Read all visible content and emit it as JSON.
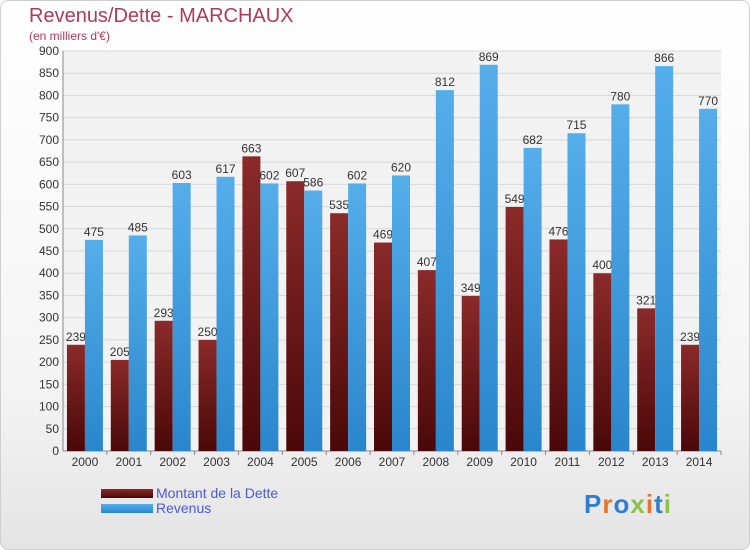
{
  "chart_data": {
    "type": "bar",
    "title": "Revenus/Dette - MARCHAUX",
    "subtitle": "(en milliers d'€)",
    "categories": [
      "2000",
      "2001",
      "2002",
      "2003",
      "2004",
      "2005",
      "2006",
      "2007",
      "2008",
      "2009",
      "2010",
      "2011",
      "2012",
      "2013",
      "2014"
    ],
    "series": [
      {
        "name": "Montant de la Dette",
        "color": "#8b2020",
        "values": [
          239,
          205,
          293,
          250,
          663,
          607,
          535,
          469,
          407,
          349,
          549,
          476,
          400,
          321,
          239
        ]
      },
      {
        "name": "Revenus",
        "color": "#3d9be0",
        "values": [
          475,
          485,
          603,
          617,
          602,
          586,
          602,
          620,
          812,
          869,
          682,
          715,
          780,
          866,
          770
        ]
      }
    ],
    "ylim": [
      0,
      900
    ],
    "yticks": [
      0,
      50,
      100,
      150,
      200,
      250,
      300,
      350,
      400,
      450,
      500,
      550,
      600,
      650,
      700,
      750,
      800,
      850,
      900
    ],
    "grid": true,
    "legend_position": "bottom-left"
  },
  "logo": {
    "text": "Proxiti",
    "colors": [
      "#2e7fd0",
      "#e8742a",
      "#2e7fd0",
      "#8bc34a",
      "#e8742a",
      "#2e7fd0",
      "#8bc34a"
    ]
  }
}
